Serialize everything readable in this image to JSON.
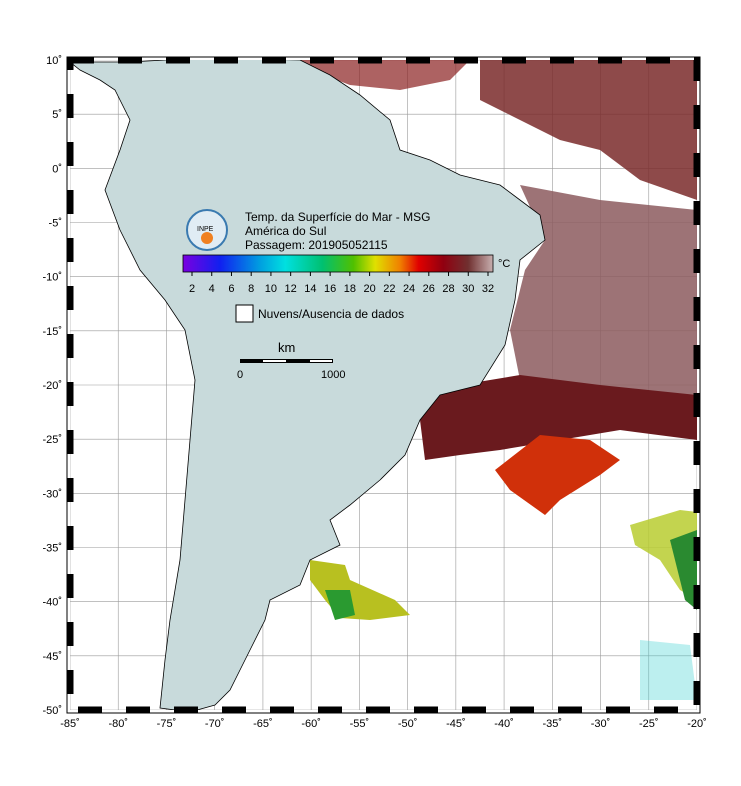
{
  "map": {
    "lon_ticks": [
      {
        "value": -85,
        "label": "-85˚"
      },
      {
        "value": -80,
        "label": "-80˚"
      },
      {
        "value": -75,
        "label": "-75˚"
      },
      {
        "value": -70,
        "label": "-70˚"
      },
      {
        "value": -65,
        "label": "-65˚"
      },
      {
        "value": -60,
        "label": "-60˚"
      },
      {
        "value": -55,
        "label": "-55˚"
      },
      {
        "value": -50,
        "label": "-50˚"
      },
      {
        "value": -45,
        "label": "-45˚"
      },
      {
        "value": -40,
        "label": "-40˚"
      },
      {
        "value": -35,
        "label": "-35˚"
      },
      {
        "value": -30,
        "label": "-30˚"
      },
      {
        "value": -25,
        "label": "-25˚"
      },
      {
        "value": -20,
        "label": "-20˚"
      }
    ],
    "lat_ticks": [
      {
        "value": 10,
        "label": "10˚"
      },
      {
        "value": 5,
        "label": "5˚"
      },
      {
        "value": 0,
        "label": "0˚"
      },
      {
        "value": -5,
        "label": "-5˚"
      },
      {
        "value": -10,
        "label": "-10˚"
      },
      {
        "value": -15,
        "label": "-15˚"
      },
      {
        "value": -20,
        "label": "-20˚"
      },
      {
        "value": -25,
        "label": "-25˚"
      },
      {
        "value": -30,
        "label": "-30˚"
      },
      {
        "value": -35,
        "label": "-35˚"
      },
      {
        "value": -40,
        "label": "-40˚"
      },
      {
        "value": -45,
        "label": "-45˚"
      },
      {
        "value": -50,
        "label": "-50˚"
      }
    ],
    "title_lines": [
      "Temp. da Superfície do Mar - MSG",
      "América do Sul",
      "Passagem: 201905052115"
    ],
    "logo_text": "INPE",
    "colorbar": {
      "unit": "°C",
      "ticks": [
        2,
        4,
        6,
        8,
        10,
        12,
        14,
        16,
        18,
        20,
        22,
        24,
        26,
        28,
        30,
        32
      ]
    },
    "no_data_label": "Nuvens/Ausencia de dados",
    "scale_bar": {
      "unit": "km",
      "labels": [
        "0",
        "1000"
      ]
    }
  }
}
